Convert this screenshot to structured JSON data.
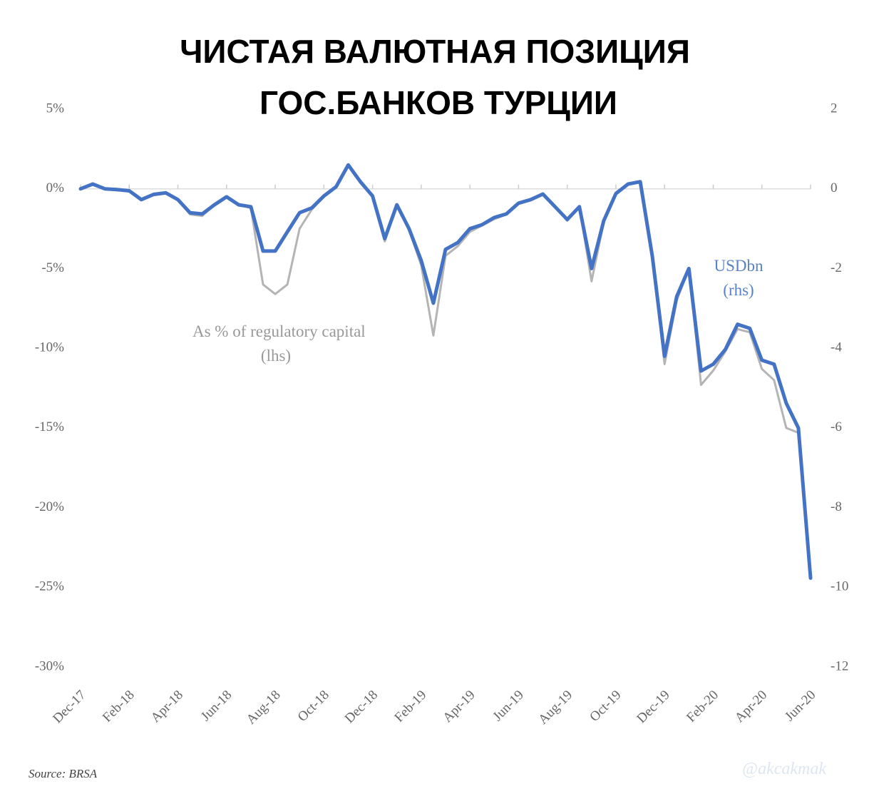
{
  "chart_data": {
    "type": "line",
    "title": [
      "ЧИСТАЯ ВАЛЮТНАЯ ПОЗИЦИЯ",
      "ГОС.БАНКОВ ТУРЦИИ"
    ],
    "categories": [
      "Dec-17",
      null,
      null,
      null,
      "Feb-18",
      null,
      null,
      null,
      "Apr-18",
      null,
      null,
      null,
      "Jun-18",
      null,
      null,
      null,
      "Aug-18",
      null,
      null,
      null,
      "Oct-18",
      null,
      null,
      null,
      "Dec-18",
      null,
      null,
      null,
      "Feb-19",
      null,
      null,
      null,
      "Apr-19",
      null,
      null,
      null,
      "Jun-19",
      null,
      null,
      null,
      "Aug-19",
      null,
      null,
      null,
      "Oct-19",
      null,
      null,
      null,
      "Dec-19",
      null,
      null,
      null,
      "Feb-20",
      null,
      null,
      null,
      "Apr-20",
      null,
      null,
      null,
      "Jun-20"
    ],
    "series": [
      {
        "name": "As % of regulatory capital (lhs)",
        "color": "#b4b4b4",
        "axis": "y",
        "values": [
          0,
          0.3,
          0,
          -0.1,
          -0.1,
          -0.7,
          -0.4,
          -0.3,
          -0.7,
          -1.6,
          -1.7,
          -1.0,
          -0.5,
          -1.0,
          -1.2,
          -6.0,
          -6.6,
          -6.0,
          -2.5,
          -1.3,
          -0.5,
          0.1,
          1.5,
          0.4,
          -0.5,
          -3.3,
          -1.0,
          -2.6,
          -4.8,
          -9.2,
          -4.2,
          -3.6,
          -2.7,
          -2.3,
          -1.9,
          -1.6,
          -0.9,
          -0.7,
          -0.3,
          -1.1,
          -2.0,
          -1.1,
          -5.8,
          -2.1,
          -0.3,
          0.3,
          0.4,
          -4.3,
          -11.0,
          -7.0,
          -5.0,
          -12.3,
          -11.4,
          -10.2,
          -8.8,
          -9.0,
          -11.3,
          -12.0,
          -15.0,
          -15.3,
          -24.4
        ]
      },
      {
        "name": "USDbn (rhs)",
        "color": "#4472c4",
        "axis": "y2",
        "values": [
          0,
          0.12,
          0,
          -0.02,
          -0.05,
          -0.27,
          -0.14,
          -0.1,
          -0.27,
          -0.6,
          -0.63,
          -0.4,
          -0.2,
          -0.4,
          -0.45,
          -1.56,
          -1.56,
          -1.08,
          -0.6,
          -0.48,
          -0.18,
          0.05,
          0.6,
          0.18,
          -0.18,
          -1.25,
          -0.4,
          -1.0,
          -1.8,
          -2.87,
          -1.52,
          -1.35,
          -1.0,
          -0.9,
          -0.72,
          -0.63,
          -0.36,
          -0.27,
          -0.13,
          -0.45,
          -0.77,
          -0.45,
          -2.0,
          -0.8,
          -0.12,
          0.12,
          0.18,
          -1.7,
          -4.2,
          -2.7,
          -2.0,
          -4.57,
          -4.4,
          -4.03,
          -3.4,
          -3.5,
          -4.3,
          -4.4,
          -5.38,
          -6.0,
          -9.77
        ]
      }
    ],
    "ylim": [
      -30,
      5
    ],
    "yticks": [
      {
        "value": 5,
        "label": "5%"
      },
      {
        "value": 0,
        "label": "0%"
      },
      {
        "value": -5,
        "label": "-5%"
      },
      {
        "value": -10,
        "label": "-10%"
      },
      {
        "value": -15,
        "label": "-15%"
      },
      {
        "value": -20,
        "label": "-20%"
      },
      {
        "value": -25,
        "label": "-25%"
      },
      {
        "value": -30,
        "label": "-30%"
      }
    ],
    "y2lim": [
      -12,
      2
    ],
    "y2ticks": [
      2,
      0,
      -2,
      -4,
      -6,
      -8,
      -10,
      -12
    ],
    "annotations": [
      [
        "As % of regulatory capital",
        "(lhs)"
      ],
      [
        "USDbn",
        "(rhs)"
      ]
    ],
    "source": "Source: BRSA",
    "watermark": "@akcakmak"
  }
}
